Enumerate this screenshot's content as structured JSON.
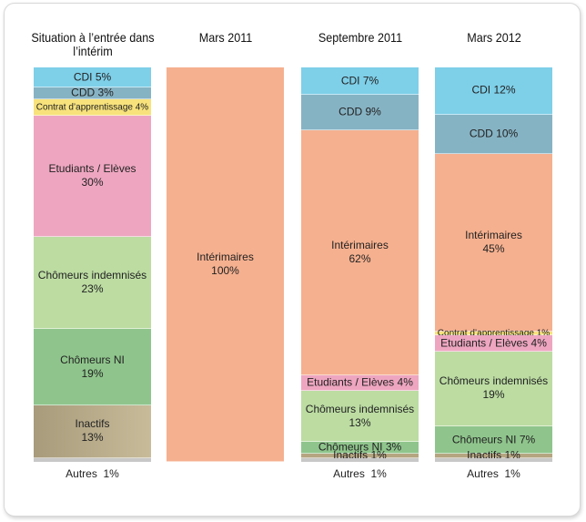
{
  "chart_data": {
    "type": "bar",
    "stacked": true,
    "normalized": true,
    "categories": [
      "Situation à l’entrée dans l’intérim",
      "Mars 2011",
      "Septembre 2011",
      "Mars 2012"
    ],
    "columns": [
      {
        "title": "Situation à l’entrée dans l’intérim",
        "segments": [
          {
            "name": "CDI",
            "value": 5,
            "label": "CDI",
            "value_text": "5%",
            "color": "#7ecfe8"
          },
          {
            "name": "CDD",
            "value": 3,
            "label": "CDD",
            "value_text": "3%",
            "color": "#86b3c4"
          },
          {
            "name": "Contrat d’apprentissage",
            "value": 4,
            "label": "Contrat d’apprentissage",
            "value_text": "4%",
            "color": "#f7e27c",
            "small": true
          },
          {
            "name": "Etudiants / Elèves",
            "value": 30,
            "label": "Etudiants / Elèves",
            "value_text": "30%",
            "color": "#eea6c0",
            "stacked": true
          },
          {
            "name": "Chômeurs indemnisés",
            "value": 23,
            "label": "Chômeurs indemnisés",
            "value_text": "23%",
            "color": "#bcdca2",
            "stacked": true
          },
          {
            "name": "Chômeurs NI",
            "value": 19,
            "label": "Chômeurs NI",
            "value_text": "19%",
            "color": "#8fc58c",
            "stacked": true
          },
          {
            "name": "Inactifs",
            "value": 13,
            "label": "Inactifs",
            "value_text": "13%",
            "color": "#a89b7b",
            "gradient": "#c7bb9a",
            "stacked": true
          },
          {
            "name": "Autres",
            "value": 1,
            "label": "",
            "value_text": "",
            "color": "#c8c8c8"
          }
        ],
        "autres_text": "Autres  1%"
      },
      {
        "title": "Mars 2011",
        "segments": [
          {
            "name": "Intérimaires",
            "value": 100,
            "label": "Intérimaires",
            "value_text": "100%",
            "color": "#f5b08f",
            "stacked": true
          }
        ],
        "autres_text": ""
      },
      {
        "title": "Septembre 2011",
        "segments": [
          {
            "name": "CDI",
            "value": 7,
            "label": "CDI",
            "value_text": "7%",
            "color": "#7ecfe8"
          },
          {
            "name": "CDD",
            "value": 9,
            "label": "CDD",
            "value_text": "9%",
            "color": "#86b3c4"
          },
          {
            "name": "Intérimaires",
            "value": 62,
            "label": "Intérimaires",
            "value_text": "62%",
            "color": "#f5b08f",
            "stacked": true
          },
          {
            "name": "Etudiants / Elèves",
            "value": 4,
            "label": "Etudiants / Elèves",
            "value_text": "4%",
            "color": "#eea6c0"
          },
          {
            "name": "Chômeurs indemnisés",
            "value": 13,
            "label": "Chômeurs indemnisés",
            "value_text": "13%",
            "color": "#bcdca2",
            "stacked": true
          },
          {
            "name": "Chômeurs NI",
            "value": 3,
            "label": "Chômeurs NI",
            "value_text": "3%",
            "color": "#8fc58c"
          },
          {
            "name": "Inactifs",
            "value": 1,
            "label": "Inactifs",
            "value_text": "1%",
            "color": "#b5a580"
          },
          {
            "name": "Autres",
            "value": 1,
            "label": "",
            "value_text": "",
            "color": "#c8c8c8"
          }
        ],
        "autres_text": "Autres  1%"
      },
      {
        "title": "Mars 2012",
        "segments": [
          {
            "name": "CDI",
            "value": 12,
            "label": "CDI",
            "value_text": "12%",
            "color": "#7ecfe8"
          },
          {
            "name": "CDD",
            "value": 10,
            "label": "CDD",
            "value_text": "10%",
            "color": "#86b3c4"
          },
          {
            "name": "Intérimaires",
            "value": 45,
            "label": "Intérimaires",
            "value_text": "45%",
            "color": "#f5b08f",
            "stacked": true
          },
          {
            "name": "Contrat d’apprentissage",
            "value": 1,
            "label": "Contrat d’apprentissage",
            "value_text": "1%",
            "color": "#f7e27c",
            "small": true
          },
          {
            "name": "Etudiants / Elèves",
            "value": 4,
            "label": "Etudiants / Elèves",
            "value_text": "4%",
            "color": "#eea6c0"
          },
          {
            "name": "Chômeurs indemnisés",
            "value": 19,
            "label": "Chômeurs indemnisés",
            "value_text": "19%",
            "color": "#bcdca2",
            "stacked": true
          },
          {
            "name": "Chômeurs NI",
            "value": 7,
            "label": "Chômeurs NI",
            "value_text": "7%",
            "color": "#8fc58c"
          },
          {
            "name": "Inactifs",
            "value": 1,
            "label": "Inactifs",
            "value_text": "1%",
            "color": "#b5a580"
          },
          {
            "name": "Autres",
            "value": 1,
            "label": "",
            "value_text": "",
            "color": "#c8c8c8"
          }
        ],
        "autres_text": "Autres  1%"
      }
    ]
  }
}
